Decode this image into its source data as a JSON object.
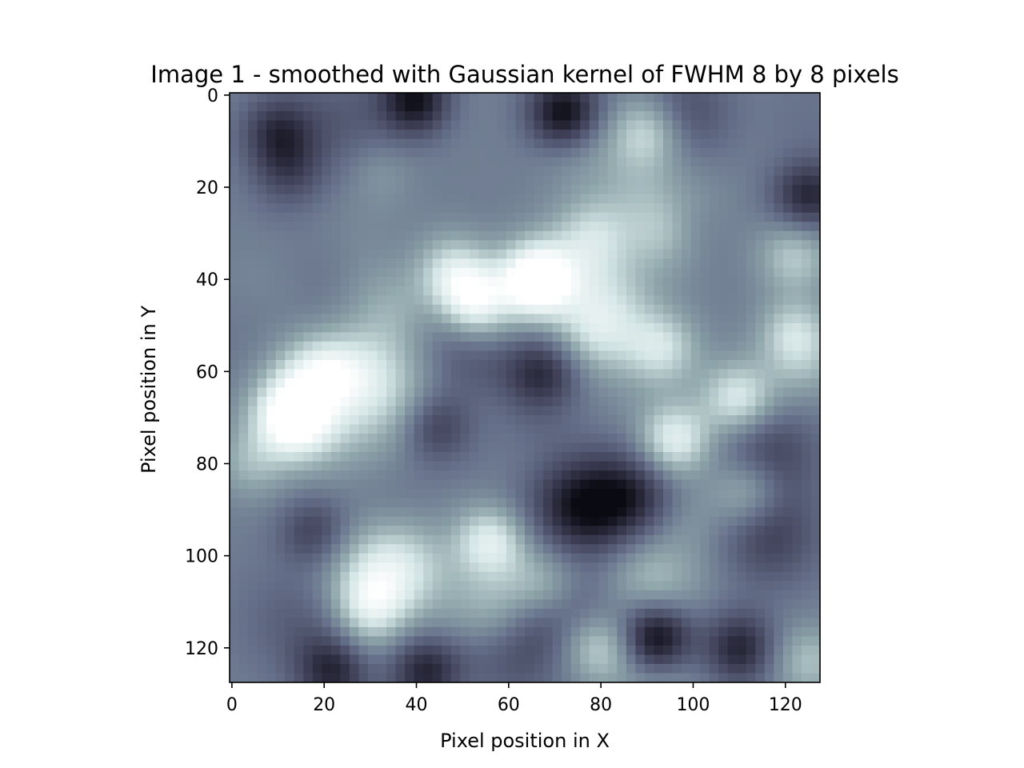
{
  "chart_data": {
    "type": "heatmap",
    "title": "Image 1 - smoothed with Gaussian kernel of FWHM 8 by 8 pixels",
    "xlabel": "Pixel position in X",
    "ylabel": "Pixel position in Y",
    "xlim": [
      -0.5,
      127.5
    ],
    "ylim": [
      127.5,
      -0.5
    ],
    "x_ticks": [
      0,
      20,
      40,
      60,
      80,
      100,
      120
    ],
    "y_ticks": [
      0,
      20,
      40,
      60,
      80,
      100,
      120
    ],
    "image_size": [
      128,
      128
    ],
    "colormap": "bone",
    "colormap_stops": [
      "#0a0a12",
      "#3d3d55",
      "#66708a",
      "#8fa6ab",
      "#d6e6e6",
      "#ffffff"
    ],
    "features": [
      {
        "x": 66,
        "y": 40,
        "value": 0.97
      },
      {
        "x": 52,
        "y": 45,
        "value": 0.85
      },
      {
        "x": 48,
        "y": 38,
        "value": 0.7
      },
      {
        "x": 13,
        "y": 70,
        "value": 0.85
      },
      {
        "x": 20,
        "y": 60,
        "value": 0.68
      },
      {
        "x": 96,
        "y": 75,
        "value": 0.82
      },
      {
        "x": 110,
        "y": 66,
        "value": 0.78
      },
      {
        "x": 112,
        "y": 86,
        "value": 0.7
      },
      {
        "x": 56,
        "y": 97,
        "value": 0.8
      },
      {
        "x": 93,
        "y": 55,
        "value": 0.72
      },
      {
        "x": 122,
        "y": 52,
        "value": 0.72
      },
      {
        "x": 122,
        "y": 35,
        "value": 0.68
      },
      {
        "x": 90,
        "y": 8,
        "value": 0.72
      },
      {
        "x": 95,
        "y": 30,
        "value": 0.65
      },
      {
        "x": 78,
        "y": 30,
        "value": 0.6
      },
      {
        "x": 4,
        "y": 80,
        "value": 0.6
      },
      {
        "x": 30,
        "y": 110,
        "value": 0.7
      },
      {
        "x": 80,
        "y": 120,
        "value": 0.72
      },
      {
        "x": 125,
        "y": 123,
        "value": 0.65
      },
      {
        "x": 40,
        "y": 1,
        "value": 0.05
      },
      {
        "x": 72,
        "y": 4,
        "value": 0.05
      },
      {
        "x": 92,
        "y": 118,
        "value": 0.03
      },
      {
        "x": 110,
        "y": 120,
        "value": 0.15
      },
      {
        "x": 125,
        "y": 22,
        "value": 0.15
      },
      {
        "x": 10,
        "y": 8,
        "value": 0.2
      },
      {
        "x": 22,
        "y": 125,
        "value": 0.18
      },
      {
        "x": 42,
        "y": 125,
        "value": 0.15
      },
      {
        "x": 18,
        "y": 95,
        "value": 0.22
      },
      {
        "x": 44,
        "y": 72,
        "value": 0.22
      },
      {
        "x": 68,
        "y": 60,
        "value": 0.25
      }
    ]
  }
}
